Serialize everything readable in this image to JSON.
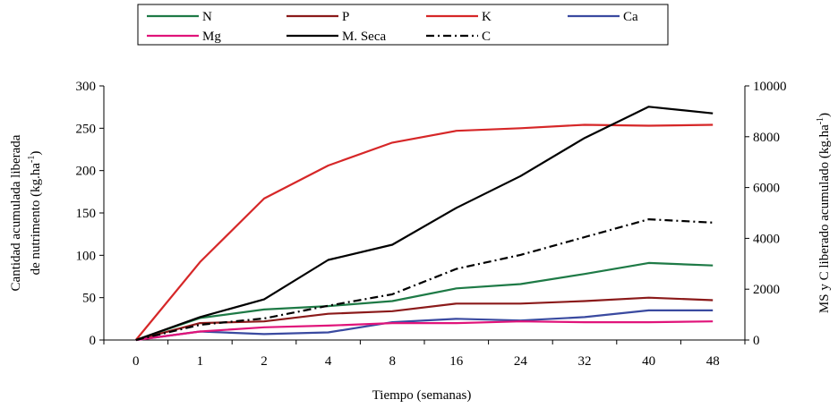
{
  "chart_data": {
    "type": "line",
    "title": "",
    "categories": [
      "0",
      "1",
      "2",
      "4",
      "8",
      "16",
      "24",
      "32",
      "40",
      "48"
    ],
    "xlabel": "Tiempo (semanas)",
    "ylabel_left_line1": "Cantidad acumulada liberada",
    "ylabel_left_line2_main": "de nutrimento (kg.ha",
    "ylabel_left_line2_sup": "-1",
    "ylabel_left_line2_end": ")",
    "ylabel_right_main": "MS y C liberado acumulado (kg.ha",
    "ylabel_right_sup": "-1",
    "ylabel_right_end": ")",
    "ylim_left": [
      0,
      300
    ],
    "ylim_right": [
      0,
      10000
    ],
    "yticks_left": [
      "0",
      "50",
      "100",
      "150",
      "200",
      "250",
      "300"
    ],
    "yticks_right": [
      "0",
      "2000",
      "4000",
      "6000",
      "8000",
      "10000"
    ],
    "grid": false,
    "legend_position": "top",
    "series": [
      {
        "name": "N",
        "axis": "left",
        "color": "#1e7a46",
        "dash": "solid",
        "values": [
          0,
          26,
          36,
          40,
          46,
          61,
          66,
          78,
          91,
          88
        ]
      },
      {
        "name": "P",
        "axis": "left",
        "color": "#8b1a1a",
        "dash": "solid",
        "values": [
          0,
          20,
          22,
          31,
          34,
          43,
          43,
          46,
          50,
          47
        ]
      },
      {
        "name": "K",
        "axis": "left",
        "color": "#d62728",
        "dash": "solid",
        "values": [
          0,
          92,
          167,
          206,
          233,
          247,
          250,
          254,
          253,
          254
        ]
      },
      {
        "name": "Ca",
        "axis": "left",
        "color": "#3a4aa0",
        "dash": "solid",
        "values": [
          0,
          10,
          7,
          9,
          21,
          25,
          23,
          27,
          35,
          35
        ]
      },
      {
        "name": "Mg",
        "axis": "left",
        "color": "#e0147a",
        "dash": "solid",
        "values": [
          0,
          10,
          15,
          17,
          20,
          20,
          22,
          21,
          21,
          22
        ]
      },
      {
        "name": "M. Seca",
        "axis": "right",
        "color": "#000000",
        "dash": "solid",
        "values": [
          0,
          900,
          1600,
          3150,
          3750,
          5200,
          6450,
          7950,
          9180,
          8920
        ]
      },
      {
        "name": "C",
        "axis": "right",
        "color": "#000000",
        "dash": "dashdot",
        "values": [
          0,
          600,
          850,
          1350,
          1800,
          2800,
          3350,
          4050,
          4750,
          4620
        ]
      }
    ],
    "legend_rows": [
      [
        "N",
        "P",
        "K",
        "Ca"
      ],
      [
        "Mg",
        "M. Seca",
        "C"
      ]
    ]
  }
}
